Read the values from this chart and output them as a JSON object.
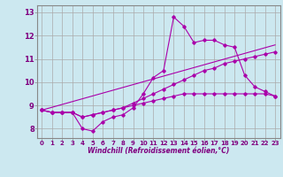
{
  "xlabel": "Windchill (Refroidissement éolien,°C)",
  "background_color": "#cce8f0",
  "grid_color": "#aaaaaa",
  "line_color": "#aa00aa",
  "xlim": [
    -0.5,
    23.5
  ],
  "ylim": [
    7.6,
    13.3
  ],
  "xticks": [
    0,
    1,
    2,
    3,
    4,
    5,
    6,
    7,
    8,
    9,
    10,
    11,
    12,
    13,
    14,
    15,
    16,
    17,
    18,
    19,
    20,
    21,
    22,
    23
  ],
  "yticks": [
    8,
    9,
    10,
    11,
    12,
    13
  ],
  "series1_x": [
    0,
    1,
    2,
    3,
    4,
    5,
    6,
    7,
    8,
    9,
    10,
    11,
    12,
    13,
    14,
    15,
    16,
    17,
    18,
    19,
    20,
    21,
    22,
    23
  ],
  "series1_y": [
    8.8,
    8.7,
    8.7,
    8.7,
    8.0,
    7.9,
    8.3,
    8.5,
    8.6,
    8.9,
    9.5,
    10.2,
    10.5,
    12.8,
    12.4,
    11.7,
    11.8,
    11.8,
    11.6,
    11.5,
    10.3,
    9.8,
    9.6,
    9.4
  ],
  "series2_x": [
    0,
    1,
    2,
    3,
    4,
    5,
    6,
    7,
    8,
    9,
    10,
    11,
    12,
    13,
    14,
    15,
    16,
    17,
    18,
    19,
    20,
    21,
    22,
    23
  ],
  "series2_y": [
    8.8,
    8.7,
    8.7,
    8.7,
    8.5,
    8.6,
    8.7,
    8.8,
    8.9,
    9.1,
    9.3,
    9.5,
    9.7,
    9.9,
    10.1,
    10.3,
    10.5,
    10.6,
    10.8,
    10.9,
    11.0,
    11.1,
    11.2,
    11.3
  ],
  "series3_x": [
    0,
    1,
    2,
    3,
    4,
    5,
    6,
    7,
    8,
    9,
    10,
    11,
    12,
    13,
    14,
    15,
    16,
    17,
    18,
    19,
    20,
    21,
    22,
    23
  ],
  "series3_y": [
    8.8,
    8.7,
    8.7,
    8.7,
    8.5,
    8.6,
    8.7,
    8.8,
    8.9,
    9.0,
    9.1,
    9.2,
    9.3,
    9.4,
    9.5,
    9.5,
    9.5,
    9.5,
    9.5,
    9.5,
    9.5,
    9.5,
    9.5,
    9.4
  ],
  "series4_x": [
    0,
    23
  ],
  "series4_y": [
    8.8,
    11.6
  ]
}
